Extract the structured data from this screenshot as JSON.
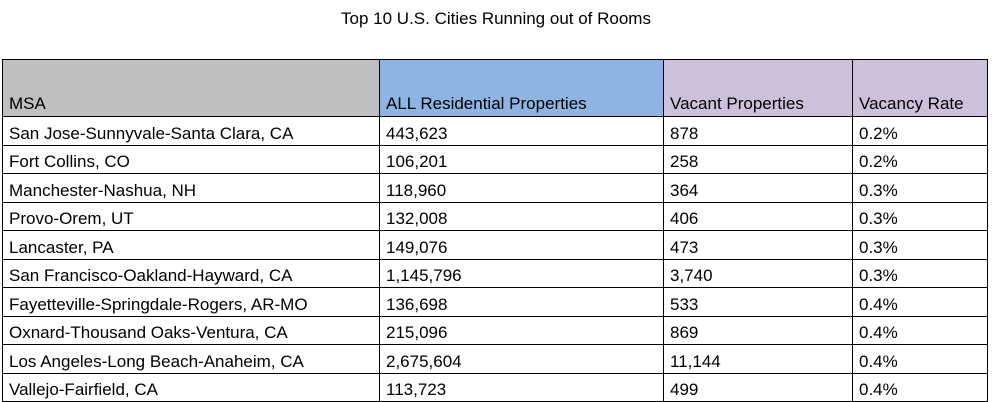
{
  "title": "Top 10 U.S. Cities Running out of Rooms",
  "columns": {
    "msa": "MSA",
    "all": "ALL Residential Properties",
    "vacant": "Vacant Properties",
    "rate": "Vacancy Rate"
  },
  "colors": {
    "msa_header": "#bfbfbf",
    "all_header": "#8eb4e3",
    "vacant_header": "#ccc0da",
    "rate_header": "#ccc0da"
  },
  "rows": [
    {
      "msa": "San Jose-Sunnyvale-Santa Clara, CA",
      "all": "443,623",
      "vacant": "878",
      "rate": "0.2%"
    },
    {
      "msa": "Fort Collins, CO",
      "all": "106,201",
      "vacant": "258",
      "rate": "0.2%"
    },
    {
      "msa": "Manchester-Nashua, NH",
      "all": "118,960",
      "vacant": "364",
      "rate": "0.3%"
    },
    {
      "msa": "Provo-Orem, UT",
      "all": "132,008",
      "vacant": "406",
      "rate": "0.3%"
    },
    {
      "msa": "Lancaster, PA",
      "all": "149,076",
      "vacant": "473",
      "rate": "0.3%"
    },
    {
      "msa": "San Francisco-Oakland-Hayward, CA",
      "all": "1,145,796",
      "vacant": "3,740",
      "rate": "0.3%"
    },
    {
      "msa": "Fayetteville-Springdale-Rogers, AR-MO",
      "all": "136,698",
      "vacant": "533",
      "rate": "0.4%"
    },
    {
      "msa": "Oxnard-Thousand Oaks-Ventura, CA",
      "all": "215,096",
      "vacant": "869",
      "rate": "0.4%"
    },
    {
      "msa": "Los Angeles-Long Beach-Anaheim, CA",
      "all": "2,675,604",
      "vacant": "11,144",
      "rate": "0.4%"
    },
    {
      "msa": "Vallejo-Fairfield, CA",
      "all": "113,723",
      "vacant": "499",
      "rate": "0.4%"
    }
  ]
}
